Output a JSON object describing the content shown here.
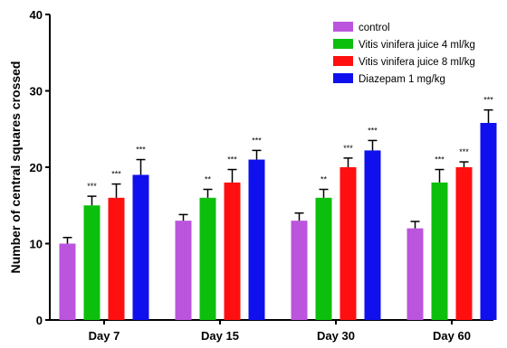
{
  "chart_data": {
    "type": "bar",
    "title": "",
    "xlabel": "",
    "ylabel": "Number of central squares crossed",
    "ylim": [
      0,
      40
    ],
    "yticks": [
      0,
      10,
      20,
      30,
      40
    ],
    "grid": false,
    "legend_position": "top-right",
    "categories": [
      "Day 7",
      "Day 15",
      "Day 30",
      "Day 60"
    ],
    "series": [
      {
        "name": "control",
        "color": "#bb55dd",
        "values": [
          10,
          13,
          13,
          12
        ],
        "errors": [
          0.8,
          0.8,
          1.0,
          0.9
        ],
        "significance": [
          "",
          "",
          "",
          ""
        ]
      },
      {
        "name": "Vitis vinifera juice 4 ml/kg",
        "color": "#0dbf0d",
        "values": [
          15,
          16,
          16,
          18
        ],
        "errors": [
          1.2,
          1.1,
          1.1,
          1.7
        ],
        "significance": [
          "***",
          "**",
          "**",
          "***"
        ]
      },
      {
        "name": "Vitis vinifera juice 8 ml/kg",
        "color": "#ff0f0f",
        "values": [
          16,
          18,
          20,
          20
        ],
        "errors": [
          1.8,
          1.7,
          1.2,
          0.7
        ],
        "significance": [
          "***",
          "***",
          "***",
          "***"
        ]
      },
      {
        "name": "Diazepam 1 mg/kg",
        "color": "#1010ee",
        "values": [
          19,
          21,
          22.2,
          25.8
        ],
        "errors": [
          2.0,
          1.2,
          1.3,
          1.7
        ],
        "significance": [
          "***",
          "***",
          "***",
          "***"
        ]
      }
    ]
  }
}
